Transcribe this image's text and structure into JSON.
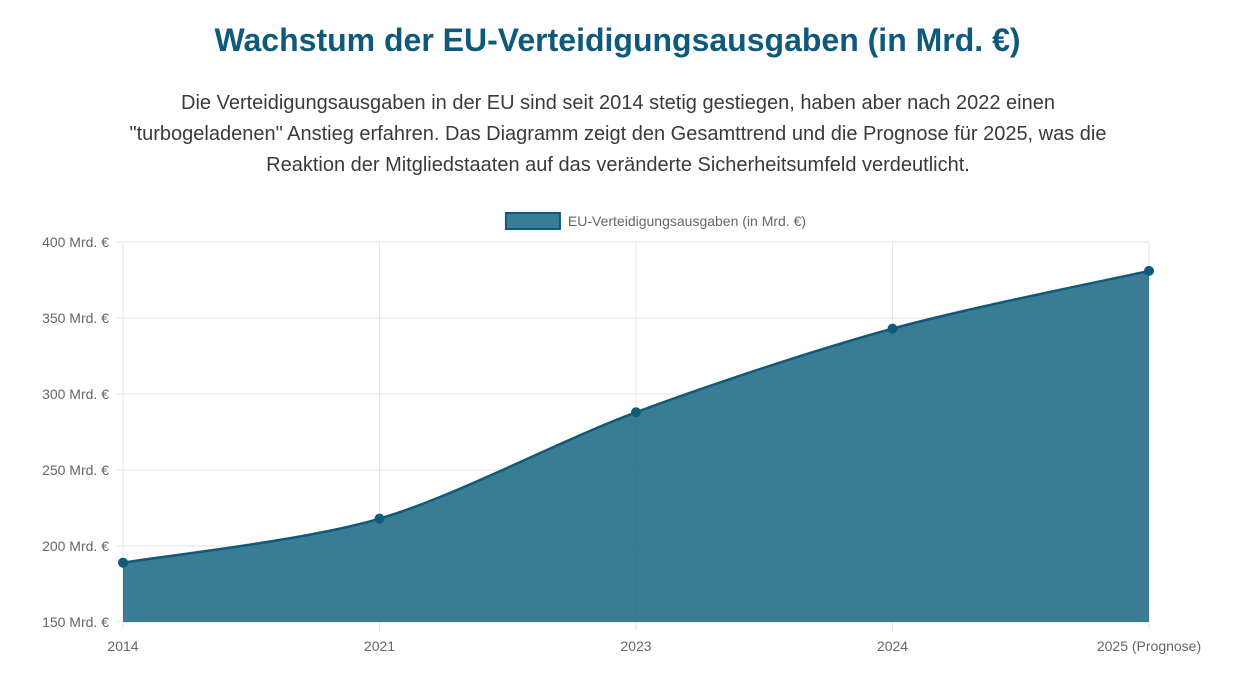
{
  "page": {
    "title": "Wachstum der EU-Verteidigungsausgaben (in Mrd. €)",
    "description": "Die Verteidigungsausgaben in der EU sind seit 2014 stetig gestiegen, haben aber nach 2022 einen \"turbogeladenen\" Anstieg erfahren. Das Diagramm zeigt den Gesamttrend und die Prognose für 2025, was die Reaktion der Mitgliedstaaten auf das veränderte Sicherheitsumfeld verdeutlicht."
  },
  "chart_data": {
    "type": "area",
    "categories": [
      "2014",
      "2021",
      "2023",
      "2024",
      "2025 (Prognose)"
    ],
    "series": [
      {
        "name": "EU-Verteidigungsausgaben (in Mrd. €)",
        "values": [
          189,
          218,
          288,
          343,
          381
        ]
      }
    ],
    "y_ticks": [
      "150 Mrd. €",
      "200 Mrd. €",
      "250 Mrd. €",
      "300 Mrd. €",
      "350 Mrd. €",
      "400 Mrd. €"
    ],
    "ylim": [
      150,
      400
    ],
    "y_tick_step": 50,
    "grid": true,
    "legend_position": "top-center",
    "colors": {
      "fill": "#1e6a85",
      "line": "#0f5a7a",
      "grid": "#e6e6e6",
      "title": "#0f5a7a"
    }
  }
}
